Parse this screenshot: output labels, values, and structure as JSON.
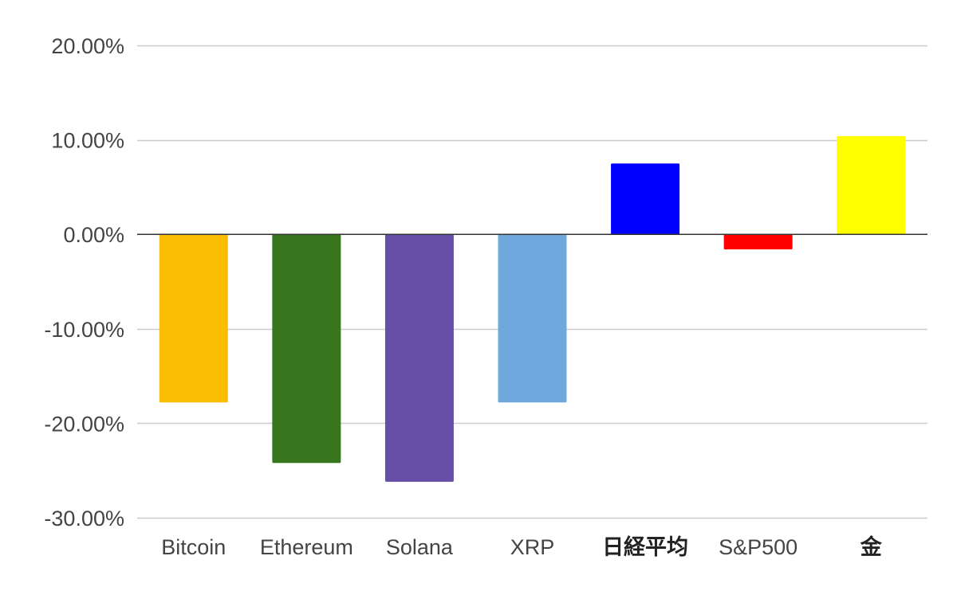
{
  "chart_data": {
    "type": "bar",
    "categories": [
      "Bitcoin",
      "Ethereum",
      "Solana",
      "XRP",
      "日経平均",
      "S&P500",
      "金"
    ],
    "values": [
      -17.8,
      -24.2,
      -26.2,
      -17.8,
      7.5,
      -1.6,
      10.4
    ],
    "colors": [
      "#fbbc04",
      "#38761d",
      "#674ea7",
      "#6fa8dc",
      "#0000ff",
      "#ff0000",
      "#ffff00"
    ],
    "ylim": [
      -30,
      20
    ],
    "yticks": [
      20,
      10,
      0,
      -10,
      -20,
      -30
    ],
    "ytick_labels": [
      "20.00%",
      "10.00%",
      "0.00%",
      "-10.00%",
      "-20.00%",
      "-30.00%"
    ],
    "grid": true,
    "zero_line_color": "#333333",
    "grid_color": "#cccccc",
    "title": "",
    "xlabel": "",
    "ylabel": ""
  }
}
